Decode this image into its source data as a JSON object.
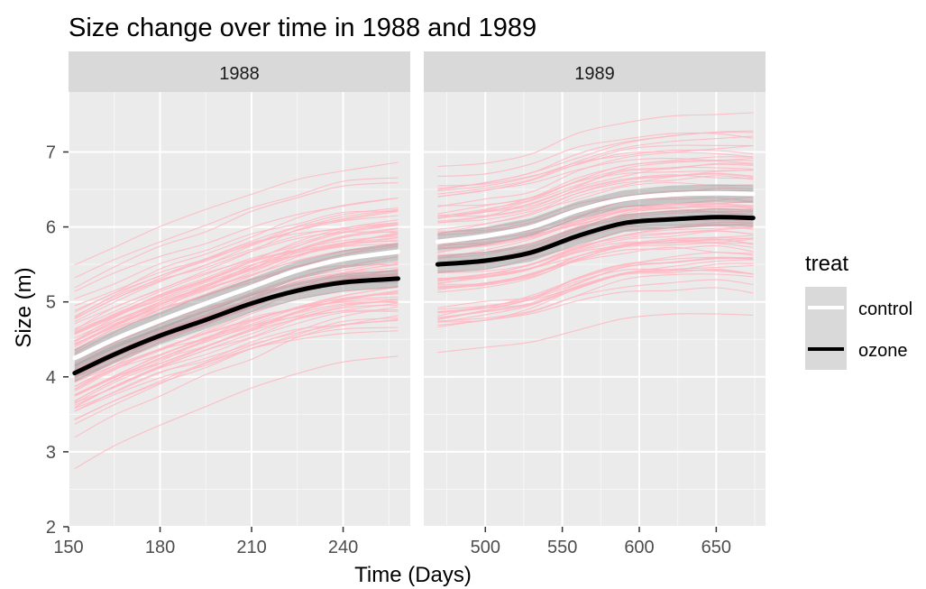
{
  "chart_data": {
    "type": "line",
    "title": "Size change over time in 1988 and 1989",
    "xlabel": "Time (Days)",
    "ylabel": "Size (m)",
    "ylim": [
      2,
      7.8
    ],
    "y_ticks": [
      2,
      3,
      4,
      5,
      6,
      7
    ],
    "grid": true,
    "legend": {
      "title": "treat",
      "placement": "right",
      "entries": [
        {
          "label": "control",
          "color": "#ffffff"
        },
        {
          "label": "ozone",
          "color": "#000000"
        }
      ]
    },
    "background_lines": {
      "description": "individual trees",
      "color": "#ffb6c1"
    },
    "panels": [
      {
        "strip": "1988",
        "xlim": [
          150,
          262
        ],
        "x_ticks": [
          150,
          180,
          210,
          240
        ],
        "series": [
          {
            "name": "control",
            "color": "#ffffff",
            "x": [
              152,
              165,
              180,
              195,
              210,
              225,
              240,
              258
            ],
            "y": [
              4.25,
              4.5,
              4.75,
              4.98,
              5.2,
              5.42,
              5.57,
              5.67
            ]
          },
          {
            "name": "ozone",
            "color": "#000000",
            "x": [
              152,
              165,
              180,
              195,
              210,
              225,
              240,
              258
            ],
            "y": [
              4.05,
              4.3,
              4.55,
              4.76,
              4.98,
              5.15,
              5.26,
              5.31
            ]
          }
        ]
      },
      {
        "strip": "1989",
        "xlim": [
          460,
          682
        ],
        "x_ticks": [
          500,
          550,
          600,
          650
        ],
        "series": [
          {
            "name": "control",
            "color": "#ffffff",
            "x": [
              469,
              500,
              530,
              560,
              590,
              620,
              650,
              674
            ],
            "y": [
              5.8,
              5.88,
              6.0,
              6.22,
              6.37,
              6.43,
              6.45,
              6.44
            ]
          },
          {
            "name": "ozone",
            "color": "#000000",
            "x": [
              469,
              500,
              530,
              560,
              590,
              620,
              650,
              674
            ],
            "y": [
              5.5,
              5.55,
              5.66,
              5.88,
              6.05,
              6.1,
              6.13,
              6.12
            ]
          }
        ]
      }
    ]
  }
}
